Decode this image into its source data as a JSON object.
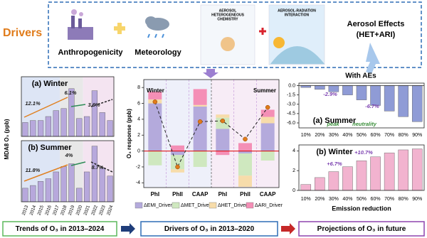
{
  "header": {
    "title": "Drivers",
    "anthropogenicity": "Anthropogenicity",
    "meteorology": "Meteorology",
    "het_label": [
      "AEROSOL",
      "HETEROGENEOUS",
      "CHEMISTRY"
    ],
    "ari_label": [
      "AEROSOL-RADIATION",
      "INTERACTION"
    ],
    "effects": [
      "Aerosol Effects",
      "(HET+ARI)"
    ]
  },
  "with_aes": "With AEs",
  "footer": [
    "Trends of O₃ in 2013–2024",
    "Drivers of O₃ in 2013–2020",
    "Projections of O₃ in future"
  ],
  "chart_data": [
    {
      "type": "bar",
      "title": "(a) Winter",
      "ylabel": "MDA8 O₃ (ppb)",
      "color": "#b7a8dc",
      "categories": [
        "2013",
        "2014",
        "2015",
        "2016",
        "2017",
        "2018",
        "2019",
        "2020",
        "2021",
        "2022",
        "2023",
        "2024"
      ],
      "values": [
        57,
        58,
        58,
        60,
        63,
        64,
        74,
        59,
        60,
        73,
        62,
        58
      ],
      "ylim": [
        50,
        80
      ],
      "annotations": [
        "12.1%",
        "6.1%",
        "3.6%"
      ]
    },
    {
      "type": "bar",
      "title": "(b) Summer",
      "color": "#b7a8dc",
      "categories": [
        "2013",
        "2014",
        "2015",
        "2016",
        "2017",
        "2018",
        "2019",
        "2020",
        "2021",
        "2022",
        "2023",
        "2024"
      ],
      "values": [
        110,
        112,
        115,
        117,
        122,
        126,
        128,
        110,
        122,
        141,
        125,
        119
      ],
      "ylim": [
        100,
        145
      ],
      "annotations": [
        "11.8%",
        "4%",
        "8.7%"
      ]
    },
    {
      "type": "stacked_bar",
      "ylabel": "O₃ response (ppb)",
      "categories": [
        "PhI",
        "PhII",
        "CAAP",
        "PhI",
        "PhII",
        "CAAP"
      ],
      "annotations": [
        "Winter",
        "Summer"
      ],
      "ylim": [
        -4.6,
        9
      ],
      "yticks": [
        -4,
        -2,
        0,
        2,
        4,
        6,
        8
      ],
      "series": [
        {
          "name": "ΔEMI_Driver",
          "color": "#b4aadc",
          "values": [
            6.0,
            -0.5,
            5.6,
            2.8,
            -0.3,
            3.5
          ]
        },
        {
          "name": "ΔMET_Driver",
          "color": "#cfe8bf",
          "values": [
            -1.8,
            -1.8,
            -2.0,
            1.4,
            -2.8,
            -1.2
          ]
        },
        {
          "name": "ΔHET_Driver",
          "color": "#f7dcaa",
          "values": [
            0.5,
            -0.4,
            0.2,
            0.4,
            -1.4,
            0.8
          ]
        },
        {
          "name": "ΔARI_Driver",
          "color": "#f48fb6",
          "values": [
            1.0,
            0.7,
            2.0,
            -0.5,
            1.0,
            0.9
          ]
        }
      ],
      "line_values": [
        6.2,
        -2.0,
        3.7,
        3.8,
        1.5,
        5.5
      ]
    },
    {
      "type": "bar",
      "title": "(a) Summer",
      "color": "#8f9bd6",
      "categories": [
        "10%",
        "20%",
        "30%",
        "40%",
        "50%",
        "60%",
        "70%",
        "80%",
        "90%"
      ],
      "values": [
        -0.3,
        -0.6,
        -1.0,
        -1.5,
        -2.3,
        -3.2,
        -4.1,
        -5.0,
        -5.8
      ],
      "ylim": [
        -6.8,
        0.4
      ],
      "yticks": [
        {
          "value": 0,
          "label": "0.0"
        },
        {
          "value": -1.5,
          "label": "-1.5"
        },
        {
          "value": -3,
          "label": "-3.0"
        },
        {
          "value": -4.5,
          "label": "-4.5"
        },
        {
          "value": -6,
          "label": "-6.0"
        }
      ],
      "annotations": [
        "-2.9%",
        "-6.7%",
        "peak",
        "neutrality"
      ]
    },
    {
      "type": "bar",
      "title": "(b) Winter",
      "xlabel": "Emission reduction",
      "color": "#f2b3cf",
      "categories": [
        "10%",
        "20%",
        "30%",
        "40%",
        "50%",
        "60%",
        "70%",
        "80%",
        "90%"
      ],
      "values": [
        0.6,
        1.3,
        1.9,
        2.4,
        3.0,
        3.4,
        3.8,
        4.1,
        4.2
      ],
      "ylim": [
        0,
        4.6
      ],
      "yticks": [
        0,
        2,
        4
      ],
      "annotations": [
        "+6.7%",
        "+10.7%"
      ]
    }
  ]
}
